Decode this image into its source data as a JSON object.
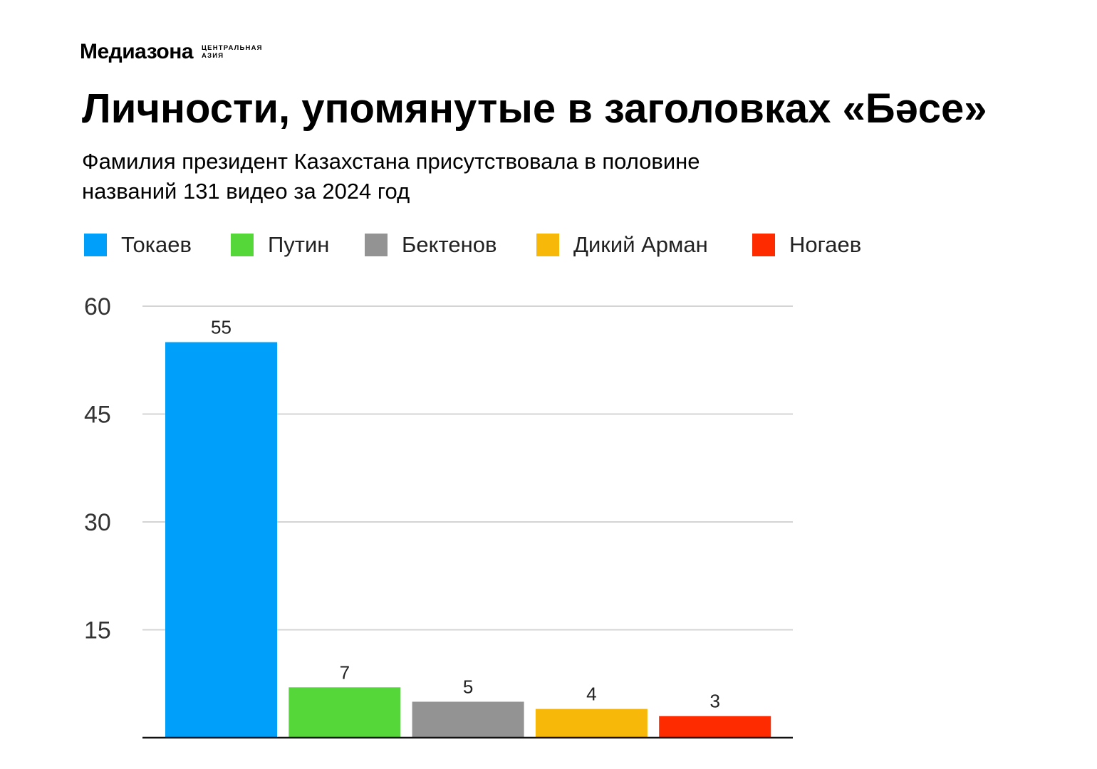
{
  "logo": {
    "name": "Медиазона",
    "sub_line1": "ЦЕНТРАЛЬНАЯ",
    "sub_line2": "АЗИЯ"
  },
  "chart_data": {
    "type": "bar",
    "title": "Личности, упомянутые в заголовках «Бәсе»",
    "subtitle_lines": [
      "Фамилия президент Казахстана присутствовала в половине",
      "названий 131 видео за 2024 год"
    ],
    "categories": [
      "Токаев",
      "Путин",
      "Бектенов",
      "Дикий Арман",
      "Ногаев"
    ],
    "values": [
      55,
      7,
      5,
      4,
      3
    ],
    "colors": [
      "#00A0FA",
      "#55D73A",
      "#939393",
      "#F7B80A",
      "#FE2A00"
    ],
    "yticks": [
      "15",
      "30",
      "45",
      "60"
    ],
    "ylim": [
      0,
      60
    ],
    "grid": true,
    "legend": "top"
  }
}
